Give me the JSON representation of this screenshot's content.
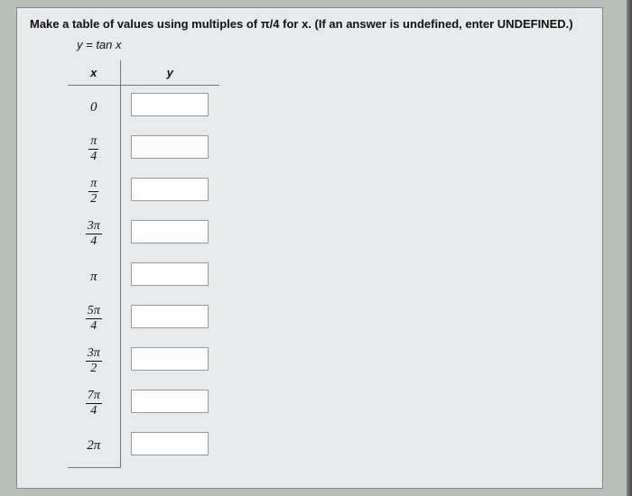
{
  "instruction": "Make a table of values using multiples of π/4 for x. (If an answer is undefined, enter UNDEFINED.)",
  "equation": "y = tan x",
  "headers": {
    "x": "x",
    "y": "y"
  },
  "rows": [
    {
      "plain": "0"
    },
    {
      "num": "π",
      "den": "4"
    },
    {
      "num": "π",
      "den": "2"
    },
    {
      "num": "3π",
      "den": "4"
    },
    {
      "plain": "π"
    },
    {
      "num": "5π",
      "den": "4"
    },
    {
      "num": "3π",
      "den": "2"
    },
    {
      "num": "7π",
      "den": "4"
    },
    {
      "plain": "2π"
    }
  ],
  "colors": {
    "page_bg": "#b8beb8",
    "panel_bg": "#e8e9ea",
    "border": "#777777",
    "input_bg": "#fdfdfd",
    "text": "#111111"
  }
}
